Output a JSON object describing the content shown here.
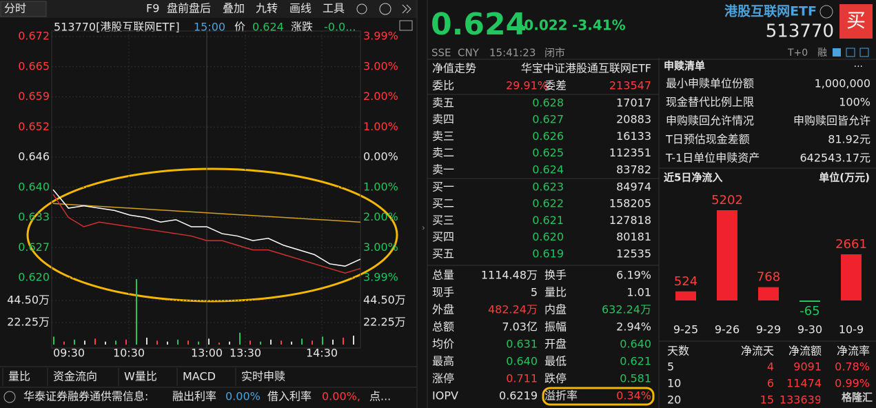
{
  "left": {
    "toolbar": {
      "mode": "分时",
      "items": [
        "F9",
        "盘前盘后",
        "叠加",
        "九转",
        "画线",
        "工具"
      ]
    },
    "info": {
      "code_name": "513770[港股互联网ETF]",
      "time": "15:00",
      "price_label": "价",
      "price": "0.624",
      "change_label": "涨跌",
      "change": "-0.0..."
    },
    "chart": {
      "price_ticks": [
        "0.672",
        "0.665",
        "0.659",
        "0.652",
        "0.646",
        "0.640",
        "0.633",
        "0.627",
        "0.620"
      ],
      "pct_ticks": [
        "3.99%",
        "3.00%",
        "2.00%",
        "1.00%",
        "0.00%",
        "1.00%",
        "2.00%",
        "3.00%",
        "3.99%"
      ],
      "volume_ticks": [
        "44.50万",
        "22.25万"
      ],
      "time_labels": [
        "09:30",
        "10:30",
        "13:00",
        "13:30",
        "14:30"
      ],
      "ylim": [
        0.62,
        0.672
      ],
      "volume_ylim": [
        0,
        66
      ],
      "price": [
        0.639,
        0.635,
        0.6355,
        0.635,
        0.6345,
        0.6335,
        0.633,
        0.632,
        0.6325,
        0.631,
        0.631,
        0.6295,
        0.629,
        0.628,
        0.6285,
        0.627,
        0.626,
        0.625,
        0.623,
        0.6225,
        0.624
      ],
      "avg": [
        0.636,
        0.6358,
        0.6356,
        0.6354,
        0.6352,
        0.635,
        0.6348,
        0.6346,
        0.6344,
        0.6342,
        0.634,
        0.6338,
        0.6336,
        0.6334,
        0.6332,
        0.633,
        0.6328,
        0.6326,
        0.6324,
        0.6322,
        0.632
      ],
      "reference": [
        0.638,
        0.633,
        0.631,
        0.632,
        0.6315,
        0.631,
        0.6305,
        0.63,
        0.6295,
        0.629,
        0.628,
        0.628,
        0.627,
        0.626,
        0.626,
        0.625,
        0.624,
        0.623,
        0.622,
        0.621,
        0.622
      ],
      "volume": [
        8,
        3,
        5,
        4,
        6,
        3,
        4,
        5,
        66,
        7,
        4,
        3,
        5,
        4,
        3,
        6,
        2,
        3,
        12,
        4,
        3,
        5,
        4,
        3,
        6,
        4,
        8,
        5,
        7,
        9
      ]
    },
    "tabs": [
      "量比",
      "资金流向",
      "W量比",
      "MACD",
      "实时申赎"
    ],
    "footer": {
      "source": "华泰证券融券通供需信息:",
      "lend_label": "融出利率",
      "lend_rate": "0.00%",
      "borrow_label": "借入利率",
      "borrow_rate": "0.00%,",
      "more": "点..."
    }
  },
  "right": {
    "header": {
      "price": "0.624",
      "change": "-0.022",
      "change_pct": "-3.41%",
      "name": "港股互联网ETF",
      "code": "513770",
      "buy": "买",
      "status": [
        "SSE",
        "CNY",
        "15:41:23",
        "闭市"
      ],
      "tags": [
        "T+0",
        "融"
      ]
    },
    "nav": {
      "label": "净值走势",
      "index": "华宝中证港股通互联网ETF"
    },
    "ratio": [
      "委比",
      "29.91%",
      "委差",
      "213547"
    ],
    "asks": [
      [
        "卖五",
        "0.628",
        "17017"
      ],
      [
        "卖四",
        "0.627",
        "20883"
      ],
      [
        "卖三",
        "0.626",
        "16133"
      ],
      [
        "卖二",
        "0.625",
        "112351"
      ],
      [
        "卖一",
        "0.624",
        "83782"
      ]
    ],
    "bids": [
      [
        "买一",
        "0.623",
        "84974"
      ],
      [
        "买二",
        "0.622",
        "158205"
      ],
      [
        "买三",
        "0.621",
        "127818"
      ],
      [
        "买四",
        "0.620",
        "80181"
      ],
      [
        "买五",
        "0.619",
        "12535"
      ]
    ],
    "stats": [
      [
        "总量",
        "1114.48万",
        "换手",
        "6.19%"
      ],
      [
        "现手",
        "5",
        "量比",
        "1.01"
      ],
      [
        "外盘",
        "482.24万",
        "内盘",
        "632.24万"
      ],
      [
        "总额",
        "7.03亿",
        "振幅",
        "2.94%"
      ],
      [
        "均价",
        "0.631",
        "开盘",
        "0.640"
      ],
      [
        "最高",
        "0.640",
        "最低",
        "0.621"
      ],
      [
        "涨停",
        "0.711",
        "跌停",
        "0.581"
      ],
      [
        "IOPV",
        "0.6219",
        "溢折率",
        "0.34%"
      ]
    ],
    "creation": {
      "title": "申赎清单",
      "more": "...",
      "rows": [
        [
          "最小申赎单位份额",
          "1,000,000"
        ],
        [
          "现金替代比例上限",
          "100%"
        ],
        [
          "申购赎回允许情况",
          "申购赎回皆允许"
        ],
        [
          "T日预估现金差额",
          "81.92元"
        ],
        [
          "T-1日单位申赎资产",
          "642543.17元"
        ]
      ]
    },
    "net_inflow": {
      "title": "近5日净流入",
      "unit": "单位(万元)",
      "categories": [
        "9-25",
        "9-26",
        "9-29",
        "9-30",
        "10-9"
      ],
      "values": [
        524,
        5202,
        768,
        -65,
        2661
      ]
    },
    "flow_table": {
      "header": [
        "天数",
        "净流天",
        "净流额",
        "净流率"
      ],
      "rows": [
        [
          "5",
          "4",
          "9091",
          "0.78%"
        ],
        [
          "10",
          "6",
          "11474",
          "0.99%"
        ],
        [
          "20",
          "15",
          "133639"
        ]
      ]
    },
    "watermark": "格隆汇"
  }
}
